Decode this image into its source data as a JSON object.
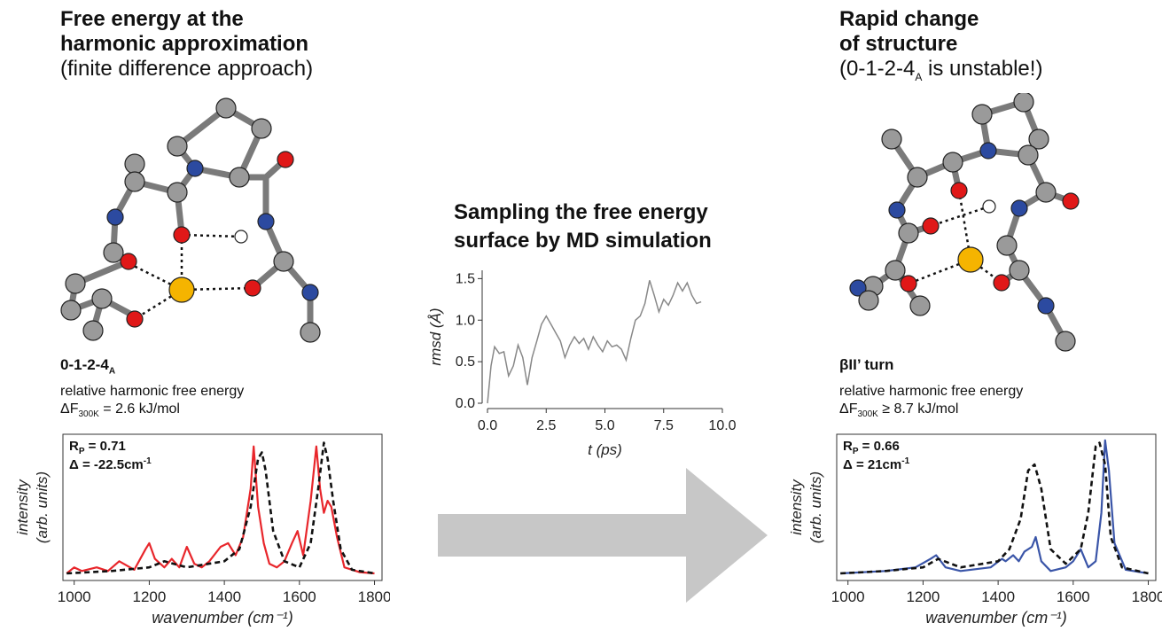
{
  "left": {
    "title_line1": "Free energy at the",
    "title_line2": "harmonic approximation",
    "subtitle": "(finite difference approach)",
    "mol_name": "0-1-2-4",
    "mol_sub": "A",
    "desc": "relative harmonic free energy",
    "energy_prefix": "ΔF",
    "energy_sub": "300K",
    "energy_value": " = 2.6 kJ/mol",
    "rp_label": "R",
    "rp_sub": "P",
    "rp_value": " = 0.71",
    "delta_label": "Δ = -22.5cm",
    "delta_sup": "-1"
  },
  "middle": {
    "title_line1": "Sampling the free energy",
    "title_line2": "surface by MD simulation"
  },
  "right": {
    "title_line1": "Rapid change",
    "title_line2": "of structure",
    "subtitle_pre": "(0-1-2-4",
    "subtitle_sub": "A",
    "subtitle_post": " is unstable!)",
    "mol_name": "βII’ turn",
    "desc": "relative harmonic free energy",
    "energy_prefix": "ΔF",
    "energy_sub": "300K",
    "energy_value": " ≥ 8.7 kJ/mol",
    "rp_label": "R",
    "rp_sub": "P",
    "rp_value": " = 0.66",
    "delta_label": "Δ = 21cm",
    "delta_sup": "-1"
  },
  "colors": {
    "carbon": "#9a9a9a",
    "nitrogen": "#2c4aa0",
    "oxygen": "#e01818",
    "hydrogen": "#ffffff",
    "metal": "#f5b400",
    "ir_left": "#e8262b",
    "ir_right": "#3a55a8",
    "rmsd": "#888888",
    "arrow": "#c7c7c7"
  },
  "chart_data": [
    {
      "type": "line",
      "xlabel": "t (ps)",
      "ylabel": "rmsd (Å)",
      "xlim": [
        0,
        10
      ],
      "ylim": [
        0,
        1.6
      ],
      "xticks": [
        "0.0",
        "2.5",
        "5.0",
        "7.5",
        "10.0"
      ],
      "yticks": [
        "0.0",
        "0.5",
        "1.0",
        "1.5"
      ],
      "series": [
        {
          "x": [
            0,
            0.15,
            0.3,
            0.5,
            0.7,
            0.9,
            1.1,
            1.3,
            1.5,
            1.7,
            1.9,
            2.1,
            2.3,
            2.5,
            2.7,
            2.9,
            3.1,
            3.3,
            3.5,
            3.7,
            3.9,
            4.1,
            4.3,
            4.5,
            4.7,
            4.9,
            5.1,
            5.3,
            5.5,
            5.7,
            5.9,
            6.1,
            6.3,
            6.5,
            6.7,
            6.9,
            7.1,
            7.3,
            7.5,
            7.7,
            7.9,
            8.1,
            8.3,
            8.5,
            8.7,
            8.9,
            9.1
          ],
          "y": [
            0.0,
            0.45,
            0.68,
            0.6,
            0.62,
            0.33,
            0.45,
            0.7,
            0.55,
            0.22,
            0.55,
            0.75,
            0.95,
            1.05,
            0.95,
            0.85,
            0.75,
            0.55,
            0.7,
            0.8,
            0.72,
            0.78,
            0.65,
            0.8,
            0.7,
            0.62,
            0.75,
            0.68,
            0.7,
            0.65,
            0.52,
            0.78,
            1.0,
            1.05,
            1.2,
            1.48,
            1.3,
            1.1,
            1.25,
            1.18,
            1.3,
            1.45,
            1.35,
            1.45,
            1.3,
            1.2,
            1.22
          ]
        }
      ]
    },
    {
      "type": "line",
      "xlabel": "wavenumber (cm-1)",
      "ylabel": "intensity (arb. units)",
      "xlim": [
        970,
        1820
      ],
      "ylim": [
        0,
        1.15
      ],
      "xticks": [
        "1000",
        "1200",
        "1400",
        "1600",
        "1800"
      ],
      "series": [
        {
          "name": "",
          "style": "solid-red",
          "x": [
            980,
            1000,
            1020,
            1060,
            1090,
            1120,
            1160,
            1190,
            1200,
            1215,
            1240,
            1260,
            1280,
            1300,
            1320,
            1340,
            1360,
            1390,
            1410,
            1430,
            1450,
            1470,
            1478,
            1490,
            1505,
            1520,
            1540,
            1560,
            1580,
            1595,
            1610,
            1630,
            1645,
            1655,
            1665,
            1675,
            1685,
            1700,
            1720,
            1760,
            1800
          ],
          "y": [
            0.0,
            0.05,
            0.02,
            0.05,
            0.02,
            0.1,
            0.03,
            0.2,
            0.25,
            0.12,
            0.05,
            0.12,
            0.05,
            0.22,
            0.08,
            0.05,
            0.1,
            0.22,
            0.25,
            0.15,
            0.3,
            0.7,
            1.05,
            0.55,
            0.25,
            0.08,
            0.05,
            0.1,
            0.25,
            0.35,
            0.15,
            0.6,
            1.05,
            0.7,
            0.5,
            0.6,
            0.55,
            0.3,
            0.05,
            0.01,
            0.0
          ]
        },
        {
          "name": "",
          "style": "dashed-black",
          "x": [
            980,
            1100,
            1200,
            1240,
            1300,
            1400,
            1440,
            1470,
            1490,
            1500,
            1510,
            1530,
            1560,
            1600,
            1630,
            1650,
            1665,
            1675,
            1690,
            1710,
            1740,
            1800
          ],
          "y": [
            0.0,
            0.02,
            0.05,
            0.1,
            0.05,
            0.1,
            0.2,
            0.55,
            0.95,
            1.0,
            0.85,
            0.35,
            0.1,
            0.05,
            0.25,
            0.7,
            1.08,
            0.95,
            0.6,
            0.2,
            0.03,
            0.0
          ]
        }
      ]
    },
    {
      "type": "line",
      "xlabel": "wavenumber (cm-1)",
      "ylabel": "intensity (arb. units)",
      "xlim": [
        970,
        1820
      ],
      "ylim": [
        0,
        1.15
      ],
      "xticks": [
        "1000",
        "1200",
        "1400",
        "1600",
        "1800"
      ],
      "series": [
        {
          "name": "",
          "style": "solid-blue",
          "x": [
            980,
            1100,
            1180,
            1220,
            1235,
            1260,
            1300,
            1380,
            1410,
            1420,
            1440,
            1455,
            1470,
            1490,
            1500,
            1515,
            1540,
            1580,
            1600,
            1620,
            1640,
            1660,
            1675,
            1685,
            1695,
            1710,
            1740,
            1800
          ],
          "y": [
            0.0,
            0.02,
            0.05,
            0.12,
            0.15,
            0.05,
            0.02,
            0.05,
            0.12,
            0.1,
            0.15,
            0.1,
            0.18,
            0.22,
            0.3,
            0.1,
            0.02,
            0.05,
            0.1,
            0.2,
            0.05,
            0.1,
            0.5,
            1.1,
            0.85,
            0.25,
            0.03,
            0.0
          ]
        },
        {
          "name": "",
          "style": "dashed-black",
          "x": [
            980,
            1100,
            1200,
            1240,
            1300,
            1400,
            1430,
            1460,
            1480,
            1497,
            1515,
            1540,
            1580,
            1620,
            1640,
            1660,
            1670,
            1685,
            1700,
            1730,
            1800
          ],
          "y": [
            0.0,
            0.02,
            0.05,
            0.12,
            0.05,
            0.1,
            0.2,
            0.45,
            0.85,
            0.9,
            0.7,
            0.2,
            0.08,
            0.2,
            0.5,
            1.05,
            1.08,
            0.9,
            0.3,
            0.05,
            0.0
          ]
        }
      ]
    }
  ]
}
